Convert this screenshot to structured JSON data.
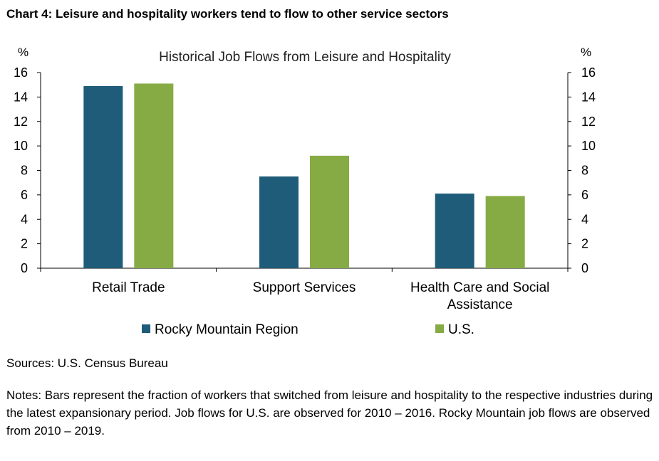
{
  "heading": "Chart 4: Leisure and hospitality workers tend to flow to other service sectors",
  "sources": "Sources: U.S. Census Bureau",
  "notes": "Notes: Bars represent the fraction of workers that switched from leisure and hospitality to the respective industries during the latest expansionary period. Job flows for U.S. are observed for 2010 – 2016. Rocky Mountain job flows are observed from 2010 – 2019.",
  "colors": {
    "rocky": "#1f5c79",
    "us": "#86ab45"
  },
  "chart_data": {
    "type": "bar",
    "title": "Historical Job Flows from Leisure and Hospitality",
    "y_unit_left": "%",
    "y_unit_right": "%",
    "ylim": [
      0,
      16
    ],
    "yticks": [
      "0",
      "2",
      "4",
      "6",
      "8",
      "10",
      "12",
      "14",
      "16"
    ],
    "categories": [
      [
        "Retail Trade"
      ],
      [
        "Support Services"
      ],
      [
        "Health Care and Social",
        "Assistance"
      ]
    ],
    "series": [
      {
        "name": "Rocky Mountain Region",
        "values": [
          14.9,
          7.5,
          6.1
        ]
      },
      {
        "name": "U.S.",
        "values": [
          15.1,
          9.2,
          5.9
        ]
      }
    ],
    "grid": false,
    "legend": "bottom"
  }
}
